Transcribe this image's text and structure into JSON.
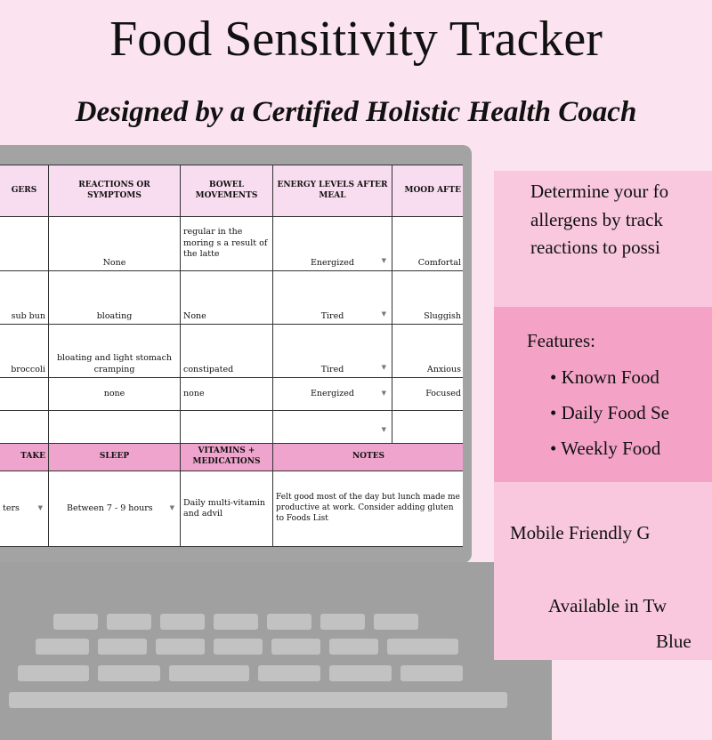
{
  "title": "Food Sensitivity Tracker",
  "subtitle": "Designed by a Certified Holistic Health Coach",
  "table": {
    "headers": [
      "GERS",
      "REACTIONS OR SYMPTOMS",
      "BOWEL MOVEMENTS",
      "ENERGY LEVELS AFTER MEAL",
      "MOOD AFTE"
    ],
    "rows": [
      [
        "",
        "None",
        "regular in the moring s a result of the latte",
        "Energized",
        "Comfortal"
      ],
      [
        "sub bun",
        "bloating",
        "None",
        "Tired",
        "Sluggish"
      ],
      [
        "broccoli",
        "bloating and light stomach cramping",
        "constipated",
        "Tired",
        "Anxious"
      ],
      [
        "",
        "none",
        "none",
        "Energized",
        "Focused"
      ],
      [
        "",
        "",
        "",
        "",
        ""
      ]
    ],
    "headers2": [
      "TAKE",
      "SLEEP",
      "VITAMINS + MEDICATIONS",
      "NOTES"
    ],
    "row2": [
      "ters",
      "Between 7 - 9 hours",
      "Daily multi-vitamin and advil",
      "Felt good most of the day but lunch made me productive at work. Consider adding gluten to Foods List"
    ]
  },
  "panel": {
    "intro": [
      "Determine your fo",
      "allergens by track",
      "reactions to possi"
    ],
    "features_label": "Features:",
    "features": [
      "Known Food ",
      "Daily Food Se",
      "Weekly Food "
    ],
    "mobile": "Mobile Friendly G",
    "available": [
      "Available in Tw",
      "Blue"
    ]
  },
  "colors": {
    "background": "#fbe4ef",
    "header": "#f8dcef",
    "header2": "#eea4cc",
    "panel": "#f9c8de",
    "band": "#f4a3c7",
    "laptop": "#a3a3a3"
  }
}
